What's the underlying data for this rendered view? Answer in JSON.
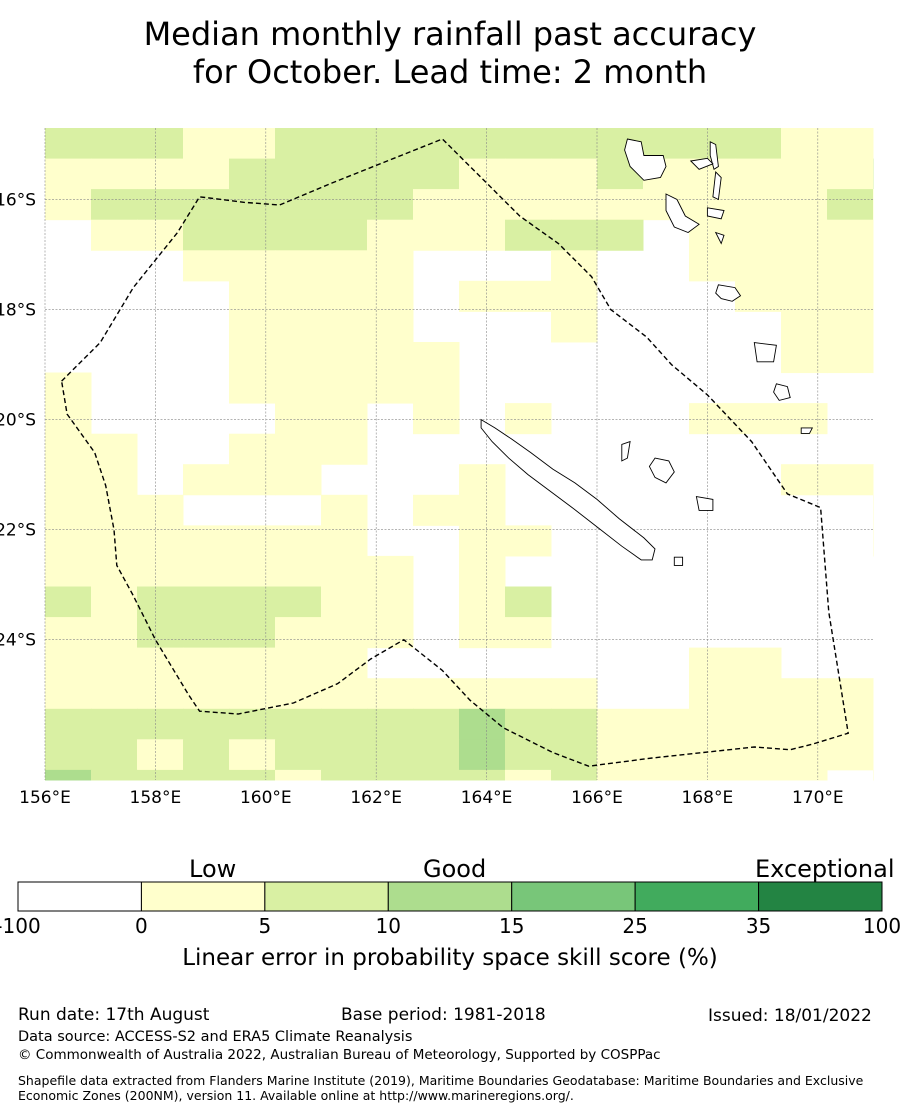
{
  "title": {
    "line1": "Median monthly rainfall past accuracy",
    "line2": "for October. Lead time: 2 month"
  },
  "map": {
    "lon_min": 156.0,
    "lon_max": 171.0,
    "lat_max": -14.7,
    "lat_min": -26.55,
    "lon_ticks": [
      156,
      158,
      160,
      162,
      164,
      166,
      168,
      170
    ],
    "lon_tick_labels": [
      "156°E",
      "158°E",
      "160°E",
      "162°E",
      "164°E",
      "166°E",
      "168°E",
      "170°E"
    ],
    "lat_ticks": [
      -16,
      -18,
      -20,
      -22,
      -24
    ],
    "lat_tick_labels": [
      "16°S",
      "18°S",
      "20°S",
      "22°S",
      "24°S"
    ],
    "grid_lines": true,
    "skill_grid": {
      "lon_start": 156.0,
      "lon_step": 0.833333,
      "lat_start": -14.7,
      "lat_step": -0.555556,
      "legend": "0 = below 0 (white), 1 = 0–5, 2 = 5–10, 3 = 10–15, 4 = 15–25",
      "rows": [
        "2221122222222222111223241",
        "1111222221112111112123341",
        "1222222211111111121123331",
        "0112222111222011111111222",
        "0001111100010011111111122",
        "0000111101110001111121122",
        "0000111100010000111111123",
        "0000111110000000111111122",
        "1000111110000000000000012",
        "1000011010100011100000011",
        "1100111000000000000000001",
        "1101110001000000111000011",
        "1110001011000000001000000",
        "1111111001100000001001001",
        "1111111101000000000000001",
        "2122221101200000000000000",
        "1122211101100000000000001",
        "1111111000000011000211111",
        "1111111111110011111211111",
        "2222222223221111111211111",
        "2212122223221111111211211",
        "3222212222121111101222221",
        "2222222222110001111122222",
        "2222212222100011111012222",
        "2222122222100001322112222",
        "2122222222100001111122221"
      ]
    },
    "boundary": {
      "style": "dashed",
      "points": [
        [
          156.3,
          -19.3
        ],
        [
          157.0,
          -18.6
        ],
        [
          157.6,
          -17.6
        ],
        [
          158.4,
          -16.6
        ],
        [
          158.8,
          -15.95
        ],
        [
          159.6,
          -16.05
        ],
        [
          160.25,
          -16.1
        ],
        [
          161.2,
          -15.7
        ],
        [
          162.2,
          -15.3
        ],
        [
          163.2,
          -14.9
        ],
        [
          163.8,
          -15.5
        ],
        [
          164.6,
          -16.3
        ],
        [
          165.3,
          -16.8
        ],
        [
          165.9,
          -17.4
        ],
        [
          166.25,
          -18.0
        ],
        [
          166.9,
          -18.5
        ],
        [
          167.35,
          -19.0
        ],
        [
          168.0,
          -19.55
        ],
        [
          168.8,
          -20.4
        ],
        [
          169.45,
          -21.35
        ],
        [
          170.05,
          -21.6
        ],
        [
          170.2,
          -23.5
        ],
        [
          170.55,
          -25.7
        ],
        [
          169.9,
          -25.9
        ],
        [
          169.5,
          -26.0
        ],
        [
          168.85,
          -25.95
        ],
        [
          167.0,
          -26.15
        ],
        [
          165.85,
          -26.3
        ],
        [
          165.2,
          -26.05
        ],
        [
          164.3,
          -25.6
        ],
        [
          163.7,
          -25.1
        ],
        [
          163.2,
          -24.56
        ],
        [
          162.5,
          -24.0
        ],
        [
          161.9,
          -24.35
        ],
        [
          161.3,
          -24.8
        ],
        [
          160.5,
          -25.15
        ],
        [
          159.5,
          -25.35
        ],
        [
          158.8,
          -25.3
        ],
        [
          158.6,
          -25.0
        ],
        [
          158.0,
          -24.0
        ],
        [
          157.6,
          -23.2
        ],
        [
          157.3,
          -22.65
        ],
        [
          157.25,
          -22.0
        ],
        [
          157.1,
          -21.2
        ],
        [
          156.9,
          -20.6
        ],
        [
          156.4,
          -19.9
        ],
        [
          156.3,
          -19.3
        ]
      ]
    },
    "land": [
      {
        "name": "New Caledonia",
        "points": [
          [
            163.9,
            -20.0
          ],
          [
            164.15,
            -20.15
          ],
          [
            164.45,
            -20.35
          ],
          [
            164.8,
            -20.6
          ],
          [
            165.2,
            -20.9
          ],
          [
            165.6,
            -21.15
          ],
          [
            166.0,
            -21.45
          ],
          [
            166.4,
            -21.8
          ],
          [
            166.85,
            -22.15
          ],
          [
            167.05,
            -22.35
          ],
          [
            167.0,
            -22.55
          ],
          [
            166.8,
            -22.55
          ],
          [
            166.45,
            -22.3
          ],
          [
            166.0,
            -21.95
          ],
          [
            165.55,
            -21.6
          ],
          [
            165.15,
            -21.3
          ],
          [
            164.75,
            -21.0
          ],
          [
            164.4,
            -20.7
          ],
          [
            164.1,
            -20.4
          ],
          [
            163.9,
            -20.15
          ]
        ]
      },
      {
        "name": "Espiritu Santo",
        "points": [
          [
            166.55,
            -14.9
          ],
          [
            166.8,
            -14.95
          ],
          [
            166.85,
            -15.2
          ],
          [
            167.2,
            -15.2
          ],
          [
            167.25,
            -15.4
          ],
          [
            167.15,
            -15.6
          ],
          [
            166.85,
            -15.65
          ],
          [
            166.6,
            -15.4
          ],
          [
            166.5,
            -15.1
          ]
        ]
      },
      {
        "name": "Malakula",
        "points": [
          [
            167.25,
            -15.9
          ],
          [
            167.45,
            -16.0
          ],
          [
            167.6,
            -16.3
          ],
          [
            167.85,
            -16.45
          ],
          [
            167.65,
            -16.6
          ],
          [
            167.4,
            -16.5
          ],
          [
            167.25,
            -16.2
          ]
        ]
      },
      {
        "name": "Maewo",
        "points": [
          [
            168.05,
            -14.95
          ],
          [
            168.15,
            -15.0
          ],
          [
            168.2,
            -15.4
          ],
          [
            168.12,
            -15.45
          ],
          [
            168.05,
            -15.2
          ]
        ]
      },
      {
        "name": "Ambae",
        "points": [
          [
            167.7,
            -15.3
          ],
          [
            168.0,
            -15.25
          ],
          [
            168.1,
            -15.35
          ],
          [
            167.85,
            -15.45
          ]
        ]
      },
      {
        "name": "Pentecost",
        "points": [
          [
            168.15,
            -15.5
          ],
          [
            168.25,
            -15.6
          ],
          [
            168.2,
            -16.0
          ],
          [
            168.1,
            -15.95
          ]
        ]
      },
      {
        "name": "Ambrym",
        "points": [
          [
            168.0,
            -16.15
          ],
          [
            168.3,
            -16.2
          ],
          [
            168.25,
            -16.35
          ],
          [
            168.0,
            -16.3
          ]
        ]
      },
      {
        "name": "Epi",
        "points": [
          [
            168.15,
            -16.6
          ],
          [
            168.3,
            -16.65
          ],
          [
            168.25,
            -16.8
          ]
        ]
      },
      {
        "name": "Efate",
        "points": [
          [
            168.2,
            -17.55
          ],
          [
            168.5,
            -17.6
          ],
          [
            168.6,
            -17.75
          ],
          [
            168.45,
            -17.85
          ],
          [
            168.25,
            -17.8
          ],
          [
            168.15,
            -17.7
          ]
        ]
      },
      {
        "name": "Erromango",
        "points": [
          [
            168.85,
            -18.6
          ],
          [
            169.25,
            -18.65
          ],
          [
            169.2,
            -18.95
          ],
          [
            168.9,
            -18.95
          ]
        ]
      },
      {
        "name": "Tanna",
        "points": [
          [
            169.25,
            -19.35
          ],
          [
            169.45,
            -19.4
          ],
          [
            169.5,
            -19.6
          ],
          [
            169.3,
            -19.65
          ],
          [
            169.2,
            -19.5
          ]
        ]
      },
      {
        "name": "Aneityum",
        "points": [
          [
            169.7,
            -20.15
          ],
          [
            169.9,
            -20.15
          ],
          [
            169.85,
            -20.25
          ],
          [
            169.7,
            -20.25
          ]
        ]
      },
      {
        "name": "Ouvea",
        "points": [
          [
            166.45,
            -20.45
          ],
          [
            166.6,
            -20.4
          ],
          [
            166.55,
            -20.7
          ],
          [
            166.45,
            -20.75
          ]
        ]
      },
      {
        "name": "Lifou",
        "points": [
          [
            167.05,
            -20.7
          ],
          [
            167.3,
            -20.75
          ],
          [
            167.4,
            -20.95
          ],
          [
            167.25,
            -21.15
          ],
          [
            167.05,
            -21.05
          ],
          [
            166.95,
            -20.85
          ]
        ]
      },
      {
        "name": "Mare",
        "points": [
          [
            167.8,
            -21.4
          ],
          [
            168.1,
            -21.45
          ],
          [
            168.1,
            -21.65
          ],
          [
            167.85,
            -21.65
          ]
        ]
      },
      {
        "name": "Isle of Pines",
        "points": [
          [
            167.4,
            -22.5
          ],
          [
            167.55,
            -22.5
          ],
          [
            167.55,
            -22.65
          ],
          [
            167.4,
            -22.65
          ]
        ]
      }
    ]
  },
  "colorbar": {
    "category_labels": [
      "Low",
      "Good",
      "Exceptional"
    ],
    "bounds": [
      "-100",
      "0",
      "5",
      "10",
      "15",
      "25",
      "35",
      "100"
    ],
    "colors": [
      "#ffffff",
      "#ffffcc",
      "#d9f0a3",
      "#addd8e",
      "#78c679",
      "#41ab5d",
      "#238443"
    ],
    "title": "Linear error in probability space skill score (%)"
  },
  "footer": {
    "run_date": "Run date: 17th August",
    "base_period": "Base period: 1981-2018",
    "issued": "Issued: 18/01/2022",
    "data_source": "Data source: ACCESS-S2 and ERA5 Climate Reanalysis",
    "copyright": "© Commonwealth of Australia 2022, Australian Bureau of Meteorology, Supported by COSPPac",
    "shapefile": "Shapefile data extracted from Flanders Marine Institute (2019), Maritime Boundaries Geodatabase: Maritime Boundaries and Exclusive Economic Zones (200NM), version 11. Available online at http://www.marineregions.org/."
  }
}
